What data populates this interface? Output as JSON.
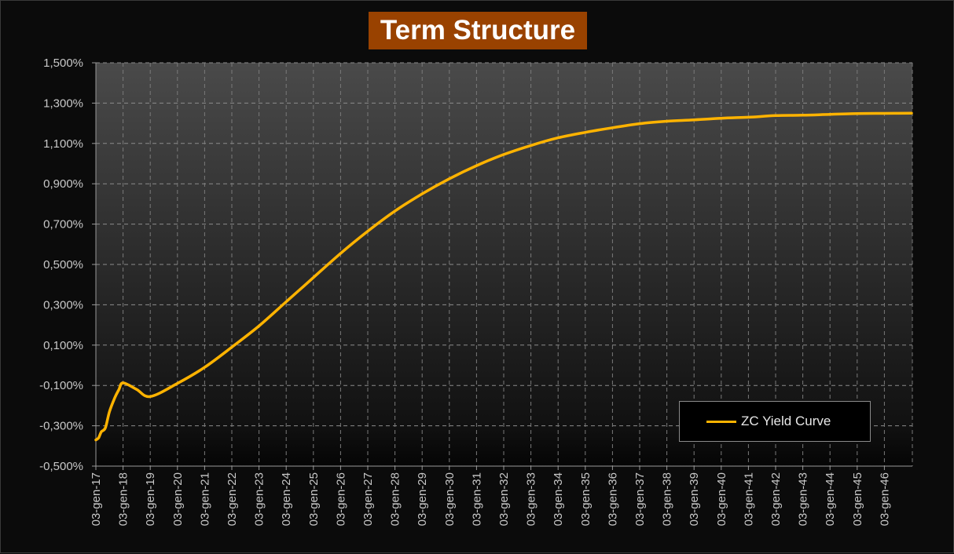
{
  "chart_data": {
    "type": "line",
    "title": "Term Structure",
    "xlabel": "",
    "ylabel": "",
    "ylim": [
      -0.5,
      1.5
    ],
    "y_ticks": [
      "-0,500%",
      "-0,300%",
      "-0,100%",
      "0,100%",
      "0,300%",
      "0,500%",
      "0,700%",
      "0,900%",
      "1,100%",
      "1,300%",
      "1,500%"
    ],
    "x_ticks": [
      "03-gen-17",
      "03-gen-18",
      "03-gen-19",
      "03-gen-20",
      "03-gen-21",
      "03-gen-22",
      "03-gen-23",
      "03-gen-24",
      "03-gen-25",
      "03-gen-26",
      "03-gen-27",
      "03-gen-28",
      "03-gen-29",
      "03-gen-30",
      "03-gen-31",
      "03-gen-32",
      "03-gen-33",
      "03-gen-34",
      "03-gen-35",
      "03-gen-36",
      "03-gen-37",
      "03-gen-38",
      "03-gen-39",
      "03-gen-40",
      "03-gen-41",
      "03-gen-42",
      "03-gen-43",
      "03-gen-44",
      "03-gen-45",
      "03-gen-46"
    ],
    "grid": true,
    "legend_position": "bottom-right",
    "series": [
      {
        "name": "ZC Yield Curve",
        "color": "#ffb300",
        "points": [
          [
            2017.0,
            -0.37
          ],
          [
            2017.1,
            -0.36
          ],
          [
            2017.2,
            -0.33
          ],
          [
            2017.35,
            -0.31
          ],
          [
            2017.5,
            -0.23
          ],
          [
            2017.7,
            -0.16
          ],
          [
            2017.85,
            -0.12
          ],
          [
            2018.0,
            -0.087
          ],
          [
            2018.5,
            -0.12
          ],
          [
            2019.0,
            -0.155
          ],
          [
            2020.0,
            -0.09
          ],
          [
            2021.0,
            -0.01
          ],
          [
            2022.0,
            0.09
          ],
          [
            2023.0,
            0.195
          ],
          [
            2024.0,
            0.315
          ],
          [
            2025.0,
            0.435
          ],
          [
            2026.0,
            0.555
          ],
          [
            2027.0,
            0.665
          ],
          [
            2028.0,
            0.765
          ],
          [
            2029.0,
            0.85
          ],
          [
            2030.0,
            0.925
          ],
          [
            2031.0,
            0.99
          ],
          [
            2032.0,
            1.045
          ],
          [
            2033.0,
            1.09
          ],
          [
            2034.0,
            1.128
          ],
          [
            2035.0,
            1.155
          ],
          [
            2036.0,
            1.178
          ],
          [
            2037.0,
            1.198
          ],
          [
            2038.0,
            1.21
          ],
          [
            2039.0,
            1.217
          ],
          [
            2040.0,
            1.225
          ],
          [
            2041.0,
            1.23
          ],
          [
            2042.0,
            1.238
          ],
          [
            2043.0,
            1.24
          ],
          [
            2044.0,
            1.244
          ],
          [
            2045.0,
            1.248
          ],
          [
            2046.0,
            1.249
          ],
          [
            2047.0,
            1.25
          ]
        ]
      }
    ]
  }
}
